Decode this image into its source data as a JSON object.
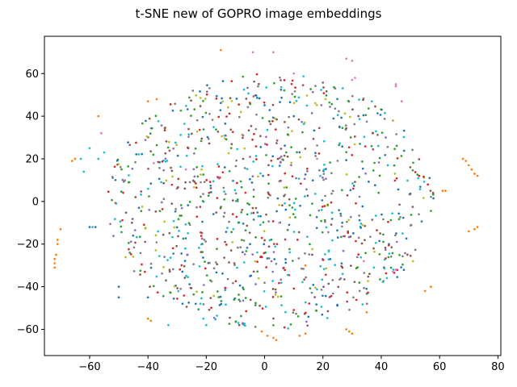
{
  "chart_data": {
    "type": "scatter",
    "title": "t-SNE new of GOPRO image embeddings",
    "xlabel": "",
    "ylabel": "",
    "xlim": [
      -75.5,
      81
    ],
    "ylim": [
      -72.3,
      77.5
    ],
    "x_ticks": [
      -60,
      -40,
      -20,
      0,
      20,
      40,
      60,
      80
    ],
    "y_ticks": [
      -60,
      -40,
      -20,
      0,
      20,
      40,
      60
    ],
    "x_tick_labels": [
      "−60",
      "−40",
      "−20",
      "0",
      "20",
      "40",
      "60",
      "80"
    ],
    "y_tick_labels": [
      "−60",
      "−40",
      "−20",
      "0",
      "20",
      "40",
      "60"
    ],
    "grid": false,
    "legend": "none",
    "marker_size": 2,
    "colors": [
      "#1f77b4",
      "#ff7f0e",
      "#2ca02c",
      "#d62728",
      "#9467bd",
      "#8c564b",
      "#e377c2",
      "#7f7f7f",
      "#bcbd22",
      "#17becf"
    ],
    "approx_point_count": 1100,
    "cloud": {
      "center_x": 2,
      "center_y": 0,
      "radius_x": 56,
      "radius_y": 60
    },
    "series": [
      {
        "color_index": 1,
        "note": "orange arcs",
        "points": [
          [
            -72,
            -27
          ],
          [
            -72,
            -29
          ],
          [
            -72,
            -31
          ],
          [
            -71.5,
            -25
          ],
          [
            -71,
            -20
          ],
          [
            -71,
            -18
          ],
          [
            -70,
            -13
          ],
          [
            -66,
            19
          ],
          [
            -65,
            20
          ],
          [
            -57,
            40
          ],
          [
            -40,
            -55
          ],
          [
            -39,
            -56
          ],
          [
            -40,
            47
          ],
          [
            -37,
            48
          ],
          [
            -15,
            71
          ],
          [
            -1,
            -61
          ],
          [
            1,
            -63
          ],
          [
            3,
            -64
          ],
          [
            4,
            -65
          ],
          [
            12,
            -63
          ],
          [
            14,
            -62
          ],
          [
            14,
            -30
          ],
          [
            28,
            -60
          ],
          [
            29,
            -61
          ],
          [
            30,
            -62
          ],
          [
            35,
            -52
          ],
          [
            44,
            38
          ],
          [
            55,
            -42
          ],
          [
            57,
            -40
          ],
          [
            61,
            5
          ],
          [
            62,
            5
          ],
          [
            68,
            20
          ],
          [
            69,
            19
          ],
          [
            70,
            17
          ],
          [
            71,
            15
          ],
          [
            72,
            13
          ],
          [
            73,
            12
          ],
          [
            70,
            -14
          ],
          [
            72,
            -13
          ],
          [
            73,
            -12
          ]
        ]
      },
      {
        "color_index": 6,
        "note": "pink highlights",
        "points": [
          [
            28,
            67
          ],
          [
            30,
            66
          ],
          [
            30,
            57
          ],
          [
            31,
            58
          ],
          [
            45,
            55
          ],
          [
            45,
            54
          ],
          [
            34,
            -28
          ],
          [
            45,
            -32
          ],
          [
            44,
            -33
          ],
          [
            47,
            47
          ],
          [
            -56,
            32
          ],
          [
            -38,
            18
          ],
          [
            -4,
            70
          ],
          [
            3,
            70
          ],
          [
            10,
            60
          ],
          [
            -27,
            15
          ],
          [
            5,
            -10
          ],
          [
            18,
            20
          ]
        ]
      },
      {
        "color_index": 9,
        "note": "cyan",
        "points": [
          [
            -63,
            20
          ],
          [
            -62,
            14
          ],
          [
            -60,
            25
          ],
          [
            -59,
            -12
          ],
          [
            -57,
            20
          ],
          [
            -55,
            23
          ],
          [
            -22,
            -48
          ],
          [
            -21,
            -55
          ],
          [
            -20,
            -58
          ],
          [
            -33,
            -58
          ],
          [
            -9,
            -57
          ],
          [
            -7,
            -58
          ]
        ]
      },
      {
        "color_index": 0,
        "note": "blue",
        "points": [
          [
            -60,
            -12
          ],
          [
            -58,
            -12
          ],
          [
            -50,
            -45
          ],
          [
            -50,
            -40
          ],
          [
            -40,
            -45
          ],
          [
            -5,
            -20
          ],
          [
            10,
            40
          ]
        ]
      }
    ]
  }
}
